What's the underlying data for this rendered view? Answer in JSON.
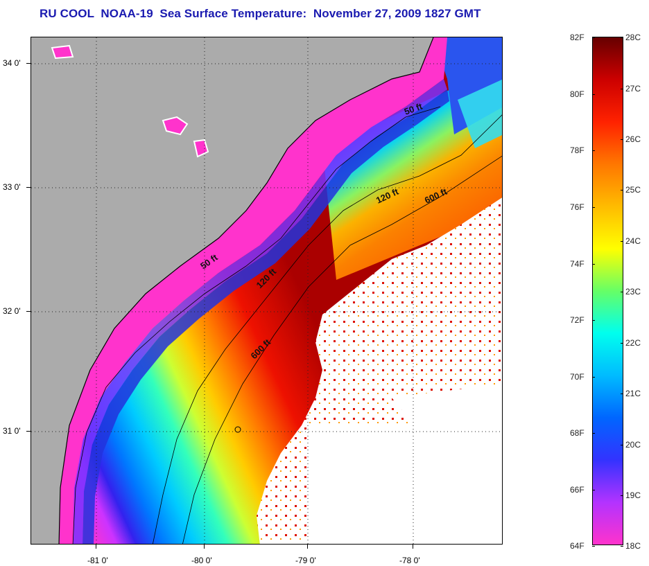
{
  "title": "RU COOL  NOAA-19  Sea Surface Temperature:  November 27, 2009 1827 GMT",
  "map": {
    "lat_labels": [
      "34 0'",
      "33 0'",
      "32 0'",
      "31 0'"
    ],
    "lon_labels": [
      "-81 0'",
      "-80 0'",
      "-79 0'",
      "-78 0'"
    ],
    "isobath_labels": [
      "50 ft",
      "50 ft",
      "120 ft",
      "120 ft",
      "600 ft",
      "600 ft"
    ],
    "colors": {
      "land": "#ababab",
      "cloud": "#ffffff",
      "coast": "#000000"
    }
  },
  "colorbar": {
    "fahrenheit_labels": [
      "82F",
      "80F",
      "78F",
      "76F",
      "74F",
      "72F",
      "70F",
      "68F",
      "66F",
      "64F"
    ],
    "celsius_labels": [
      "28C",
      "27C",
      "26C",
      "25C",
      "24C",
      "23C",
      "22C",
      "21C",
      "20C",
      "19C",
      "18C"
    ],
    "colors": [
      "#ff33cc",
      "#b333ff",
      "#3333ff",
      "#0066ff",
      "#00bbff",
      "#00ffee",
      "#66ff66",
      "#ffff00",
      "#ffbb00",
      "#ff7700",
      "#ff2200",
      "#cc0000",
      "#660000"
    ]
  }
}
